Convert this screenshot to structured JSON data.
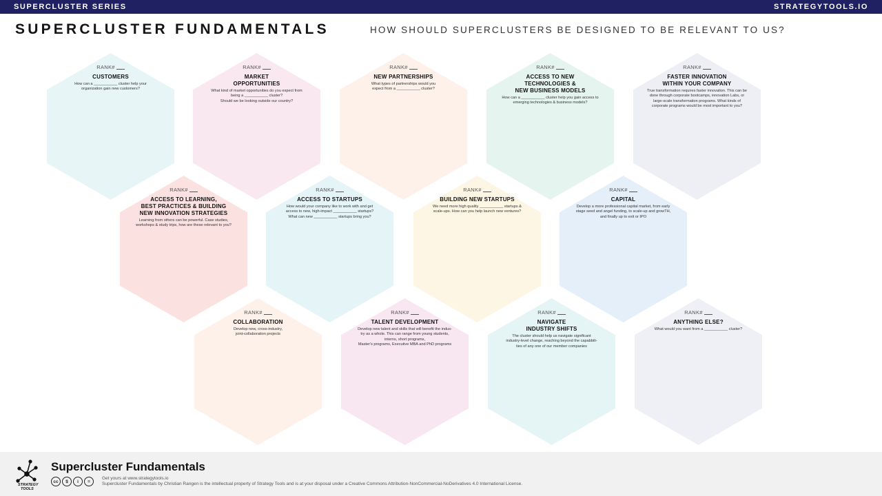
{
  "header": {
    "series_label": "SUPERCLUSTER SERIES",
    "site_label": "STRATEGYTOOLS.IO",
    "title": "SUPERCLUSTER FUNDAMENTALS",
    "subtitle": "HOW SHOULD SUPERCLUSTERS BE DESIGNED TO BE RELEVANT TO US?"
  },
  "colors": {
    "topbar": "#1f2163",
    "customers": "#e8f5f6",
    "market": "#fae8f1",
    "partnerships": "#fdf1ea",
    "technologies": "#e6f4ef",
    "faster_innovation": "#eeeff5",
    "learning": "#fbe2e0",
    "startups": "#e5f4f7",
    "building_startups": "#fef6e4",
    "capital": "#e4eff9",
    "collaboration": "#fdf1ea",
    "talent": "#f8e6f1",
    "industry_shifts": "#e5f4f5",
    "anything_else": "#eff0f5",
    "footer": "#f1f1f1"
  },
  "rank_label": "RANK#",
  "hexagons": [
    {
      "title": "CUSTOMERS",
      "desc": "How can a ___________ cluster help your organization gain new customers?"
    },
    {
      "title": "MARKET OPPORTUNITIES",
      "desc": "What kind of market opportunities do you expect from being a ___________ cluster? Should we be looking outside our country?"
    },
    {
      "title": "NEW PARTNERSHIPS",
      "desc": "What types of partnerships would you expect from a ___________ cluster?"
    },
    {
      "title": "ACCESS TO NEW TECHNOLOGIES & NEW BUSINESS MODELS",
      "desc": "How can a ___________ cluster help you gain access to emerging technologies & business models?"
    },
    {
      "title": "FASTER INNOVATION WITHIN YOUR COMPANY",
      "desc": "True transformation requires faster innovation. This can be done through corporate bootcamps, innovation Labs, or large-scale transformation programs. What kinds of corporate programs would be most important to you?"
    },
    {
      "title": "ACCESS TO LEARNING, BEST PRACTICES & BUILDING NEW INNOVATION STRATEGIES",
      "desc": "Learning from others can be powerful. Case studies, workshops & study trips, how are these relevant to you?"
    },
    {
      "title": "ACCESS TO STARTUPS",
      "desc": "How would your company like to work with and get access to new, high-impact ___________ startups? What can new ___________ startups bring you?"
    },
    {
      "title": "BUILDING NEW STARTUPS",
      "desc": "We need more high quality ___________ startups & scale-ups. How can you help launch new ventures?"
    },
    {
      "title": "CAPITAL",
      "desc": "Develop a more professional capital market, from early stage seed and angel funding, to scale-up and growTH, and finally up to exit or IPO"
    },
    {
      "title": "COLLABORATION",
      "desc": "Develop new, cross-industry, joint-collaboration projects"
    },
    {
      "title": "TALENT DEVELOPMENT",
      "desc": "Develop new talent and skills that will benefit the industry as a whole. This can range from young students, interns, short programs, Master's programs, Executive MBA and PhD programs"
    },
    {
      "title": "NAVIGATE INDUSTRY SHIFTS",
      "desc": "The cluster should help us navigate significant industry-level change, reaching beyond the capabilities of any one of our member companies"
    },
    {
      "title": "ANYTHING ELSE?",
      "desc": "What would you want from a ___________ cluster?"
    }
  ],
  "hex_lines": {
    "h0": [
      "CUSTOMERS"
    ],
    "h1": [
      "MARKET",
      "OPPORTUNITIES"
    ],
    "h2": [
      "NEW PARTNERSHIPS"
    ],
    "h3": [
      "ACCESS TO NEW",
      "TECHNOLOGIES &",
      "NEW BUSINESS MODELS"
    ],
    "h4": [
      "FASTER INNOVATION",
      "WITHIN YOUR COMPANY"
    ],
    "h5": [
      "ACCESS TO LEARNING,",
      "BEST PRACTICES & BUILDING",
      "NEW INNOVATION STRATEGIES"
    ],
    "h6": [
      "ACCESS TO STARTUPS"
    ],
    "h7": [
      "BUILDING NEW STARTUPS"
    ],
    "h8": [
      "CAPITAL"
    ],
    "h9": [
      "COLLABORATION"
    ],
    "h10": [
      "TALENT DEVELOPMENT"
    ],
    "h11": [
      "NAVIGATE",
      "INDUSTRY SHIFTS"
    ],
    "h12": [
      "ANYTHING ELSE?"
    ]
  },
  "desc_lines": {
    "h0": [
      "How can a ___________ cluster help your",
      "organization gain new customers?"
    ],
    "h1": [
      "What kind of market opportunities do you expect from",
      "being a ___________ cluster?",
      "Should we be looking outside our country?"
    ],
    "h2": [
      "What types of partnerships would you",
      "expect from a ___________ cluster?"
    ],
    "h3": [
      "How can a ___________ cluster help you gain access to",
      "emerging technologies & business models?"
    ],
    "h4": [
      "True transformation requires faster innovation. This can be",
      "done through corporate bootcamps, innovation Labs, or",
      "large-scale transformation programs. What kinds of",
      "corporate programs would be most important to you?"
    ],
    "h5": [
      "Learning from others can be powerful. Case studies,",
      "workshops & study trips, how are these relevant to you?"
    ],
    "h6": [
      "How would your company like to work with and get",
      "access to new, high-impact ___________ startups?",
      "What can new ___________ startups bring you?"
    ],
    "h7": [
      "We need more high quality ___________ startups &",
      "scale-ups. How can you help launch new ventures?"
    ],
    "h8": [
      "Develop a more professional capital market, from early",
      "stage seed and angel funding, to scale-up and growTH,",
      "and finally up to exit or IPO"
    ],
    "h9": [
      "Develop new, cross-industry,",
      "joint-collaboration projects"
    ],
    "h10": [
      "Develop new talent and skills that will benefit the indus-",
      "try as a whole. This can range from young students,",
      "interns,  short programs,",
      "Master's programs, Executive MBA and PhD programs"
    ],
    "h11": [
      "The cluster should help us navigate significant",
      "industry-level change, reaching beyond the capabbili-",
      "ties of any one of our member companies"
    ],
    "h12": [
      "What would you want from a ___________ cluster?"
    ]
  },
  "footer": {
    "logo_text_1": "STRATEGY",
    "logo_text_2": "TOOLS",
    "title": "Supercluster Fundamentals",
    "cc_icons": [
      "cc",
      "$",
      "i",
      "="
    ],
    "line1": "Get yours at www.strategytools.io",
    "line2": "Supercluster Fundamentals by Christian Rangen is the intellectual property of Strategy Tools and is at your disposal under a Creative Commons Attribution-NonCommercial-NoDerivatives 4.0 International License."
  }
}
